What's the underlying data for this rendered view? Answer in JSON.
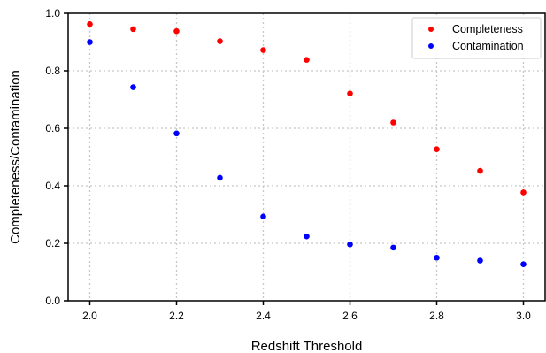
{
  "chart_data": {
    "type": "scatter",
    "title": "",
    "xlabel": "Redshift Threshold",
    "ylabel": "Completeness/Contamination",
    "xlim": [
      1.95,
      3.05
    ],
    "ylim": [
      0.0,
      1.0
    ],
    "xticks": [
      2.0,
      2.2,
      2.4,
      2.6,
      2.8,
      3.0
    ],
    "xtick_labels": [
      "2.0",
      "2.2",
      "2.4",
      "2.6",
      "2.8",
      "3.0"
    ],
    "yticks": [
      0.0,
      0.2,
      0.4,
      0.6,
      0.8,
      1.0
    ],
    "ytick_labels": [
      "0.0",
      "0.2",
      "0.4",
      "0.6",
      "0.8",
      "1.0"
    ],
    "grid": true,
    "legend_position": "top-right",
    "x": [
      2.0,
      2.1,
      2.2,
      2.3,
      2.4,
      2.5,
      2.6,
      2.7,
      2.8,
      2.9,
      3.0
    ],
    "series": [
      {
        "name": "Completeness",
        "color": "#ff0000",
        "values": [
          0.962,
          0.945,
          0.938,
          0.903,
          0.872,
          0.838,
          0.721,
          0.62,
          0.527,
          0.452,
          0.377
        ]
      },
      {
        "name": "Contamination",
        "color": "#0000ff",
        "values": [
          0.9,
          0.743,
          0.582,
          0.428,
          0.293,
          0.224,
          0.196,
          0.185,
          0.15,
          0.14,
          0.127
        ]
      }
    ]
  }
}
